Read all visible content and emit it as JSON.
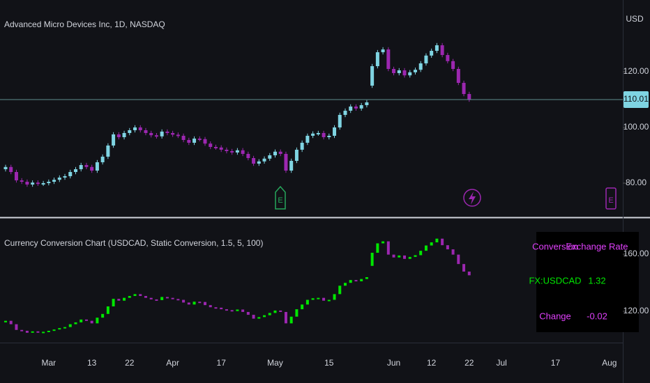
{
  "chart_data": [
    {
      "type": "candlestick",
      "title": "Advanced Micro Devices Inc, 1D, NASDAQ",
      "currency": "USD",
      "categories": [
        null,
        null,
        null,
        null,
        null,
        null,
        null,
        null,
        "Mar",
        null,
        null,
        null,
        null,
        null,
        null,
        null,
        "13",
        null,
        null,
        null,
        null,
        null,
        null,
        "22",
        null,
        null,
        null,
        null,
        null,
        null,
        null,
        "Apr",
        null,
        null,
        null,
        null,
        null,
        null,
        null,
        null,
        "17",
        null,
        null,
        null,
        null,
        null,
        null,
        null,
        null,
        null,
        "May",
        null,
        null,
        null,
        null,
        null,
        null,
        null,
        null,
        null,
        "15",
        null,
        null,
        null,
        null,
        null,
        null,
        null,
        null,
        null,
        null,
        null,
        "Jun",
        null,
        null,
        null,
        null,
        null,
        null,
        "12",
        null,
        null,
        null,
        null,
        null,
        null,
        "22",
        null,
        null,
        null,
        null,
        null,
        "Jul",
        null,
        null,
        null,
        null,
        null,
        null,
        null,
        null,
        null,
        "17",
        null,
        null,
        null,
        null,
        null,
        null,
        null,
        null,
        null,
        "Aug"
      ],
      "open": [
        85,
        85.8,
        84,
        81,
        80.5,
        79.5,
        80.2,
        79.8,
        80,
        80.5,
        81.2,
        82,
        82.5,
        84,
        85,
        86.5,
        85.8,
        84.5,
        87.5,
        89.5,
        93.5,
        97.5,
        96.5,
        98,
        99,
        100,
        99,
        98,
        97.2,
        96.8,
        98.5,
        98,
        97.4,
        97,
        95.5,
        94.5,
        96,
        95.8,
        94.2,
        93,
        92.8,
        92,
        91.5,
        91,
        91.8,
        90.5,
        89,
        87,
        87.8,
        88.8,
        90,
        91.3,
        90.5,
        84.5,
        88,
        92,
        94.5,
        97,
        97.8,
        98,
        96.5,
        97,
        100,
        104.5,
        106,
        107.5,
        106.8,
        108,
        115,
        122,
        127,
        128,
        121,
        119.5,
        120.5,
        118.7,
        119.8,
        120.7,
        123,
        125.8,
        127.5,
        129.5,
        126,
        123.8,
        121,
        116,
        112,
        null,
        null,
        null,
        null,
        null,
        null,
        null,
        null,
        null,
        null,
        null,
        null,
        null,
        null,
        null,
        null,
        null,
        null,
        null,
        null,
        null,
        null,
        null,
        null,
        null,
        null
      ],
      "high": [
        86.6,
        86.6,
        84.8,
        81.8,
        81.3,
        81,
        81,
        80.8,
        81.3,
        82,
        82.8,
        83.3,
        84.8,
        85.8,
        87.3,
        87.3,
        86.6,
        88.3,
        90.3,
        94.3,
        98.3,
        98.3,
        98.8,
        99.8,
        100.8,
        100.8,
        99.8,
        98.8,
        98,
        99.3,
        99.3,
        98.8,
        98.2,
        97.8,
        96.3,
        96.8,
        96.8,
        96.6,
        95,
        93.8,
        93.6,
        92.8,
        92.3,
        92.6,
        92.6,
        91.3,
        89.8,
        88.6,
        89.6,
        90.8,
        92.1,
        92.1,
        91.3,
        88.8,
        92.8,
        95.3,
        97.8,
        98.6,
        98.8,
        98.8,
        97.8,
        100.8,
        105.3,
        106.8,
        108.3,
        108.3,
        108.8,
        109.8,
        122.8,
        127.8,
        128.8,
        128.8,
        121.8,
        121.3,
        121.3,
        120.6,
        121.5,
        123.8,
        126.6,
        128.3,
        130.3,
        130.3,
        126.8,
        124.6,
        121.8,
        116.8,
        112.8,
        null,
        null,
        null,
        null,
        null,
        null,
        null,
        null,
        null,
        null,
        null,
        null,
        null,
        null,
        null,
        null,
        null,
        null,
        null,
        null,
        null,
        null,
        null,
        null,
        null,
        null
      ],
      "low": [
        84.2,
        83.2,
        80.2,
        79.7,
        78.7,
        78.7,
        79,
        79,
        79.2,
        79.7,
        80.4,
        81.2,
        81.7,
        83.2,
        84.2,
        85,
        83.7,
        83.7,
        86.7,
        88.7,
        92.7,
        95.7,
        95.7,
        97.2,
        98.2,
        98.2,
        97.2,
        96.4,
        96,
        96,
        97.2,
        96.6,
        96.2,
        94.7,
        93.7,
        93.7,
        95,
        93.4,
        92.2,
        92,
        91.2,
        90.7,
        90.2,
        90.2,
        89.7,
        88.2,
        86.2,
        86.2,
        87,
        88,
        89.2,
        89.7,
        83.7,
        83.7,
        87.2,
        91.2,
        93.7,
        96.2,
        97,
        95.7,
        95.7,
        96.2,
        99.2,
        103.7,
        105.2,
        106,
        106,
        107.2,
        114.2,
        121.2,
        126.2,
        120.2,
        118.7,
        118.7,
        117.9,
        117.9,
        119,
        119.9,
        122.2,
        125,
        126.7,
        125.2,
        123,
        120.2,
        115.2,
        111.2,
        109.2,
        null,
        null,
        null,
        null,
        null,
        null,
        null,
        null,
        null,
        null,
        null,
        null,
        null,
        null,
        null,
        null,
        null,
        null,
        null,
        null,
        null,
        null,
        null,
        null,
        null,
        null
      ],
      "close": [
        85.8,
        84,
        81,
        80.5,
        79.5,
        80.2,
        79.8,
        80,
        80.5,
        81.2,
        82,
        82.5,
        84,
        85,
        86.5,
        85.8,
        84.5,
        87.5,
        89.5,
        93.5,
        97.5,
        96.5,
        98,
        99,
        100,
        99,
        98,
        97.2,
        96.8,
        98.5,
        98,
        97.4,
        97,
        95.5,
        94.5,
        96,
        95.8,
        94.2,
        93,
        92.8,
        92,
        91.5,
        91,
        91.8,
        90.5,
        89,
        87,
        87.8,
        88.8,
        90,
        91.3,
        90.5,
        84.5,
        88,
        92,
        94.5,
        97,
        97.8,
        98,
        96.5,
        97,
        100,
        104.5,
        106,
        107.5,
        106.8,
        108,
        109,
        122,
        127,
        128,
        121,
        119.5,
        120.5,
        118.7,
        119.8,
        120.7,
        123,
        125.8,
        127.5,
        129.5,
        126,
        123.8,
        121,
        116,
        112,
        110.01,
        null,
        null,
        null,
        null,
        null,
        null,
        null,
        null,
        null,
        null,
        null,
        null,
        null,
        null,
        null,
        null,
        null,
        null,
        null,
        null,
        null,
        null,
        null,
        null,
        null,
        null
      ],
      "up_color": "#7fd4e2",
      "down_color": "#9c27b0",
      "ylim": [
        68.25,
        145.75
      ],
      "yticks": [
        {
          "value": 80,
          "label": "80.00"
        },
        {
          "value": 100,
          "label": "100.00"
        },
        {
          "value": 120,
          "label": "120.00"
        }
      ],
      "last_price": 110.01,
      "events": [
        "E",
        "E"
      ]
    },
    {
      "type": "candlestick",
      "title": "Currency Conversion Chart (USDCAD, Static Conversion, 1.5, 5, 100)",
      "open": [
        112.2,
        113.3,
        110.9,
        106.9,
        106.3,
        104.9,
        105.9,
        105.3,
        105.6,
        106.3,
        107.2,
        108.2,
        108.9,
        110.9,
        112.2,
        114.2,
        113.3,
        111.5,
        115.5,
        118.1,
        123.4,
        128.7,
        127.4,
        129.4,
        130.7,
        132,
        130.7,
        129.4,
        128.3,
        127.8,
        130,
        129.4,
        128.6,
        128,
        126.1,
        124.7,
        126.7,
        126.5,
        124.3,
        122.8,
        122.5,
        121.4,
        120.8,
        120.1,
        121.2,
        119.5,
        117.5,
        114.8,
        115.9,
        117.2,
        118.8,
        120.5,
        119.5,
        111.5,
        116.2,
        121.4,
        124.7,
        128,
        129.1,
        129.4,
        127.4,
        128,
        132,
        137.9,
        139.9,
        141.9,
        141,
        142.6,
        151.8,
        161,
        167.6,
        169,
        159.7,
        157.7,
        159.1,
        156.7,
        158.1,
        159.3,
        162.4,
        166.1,
        168.3,
        170.9,
        166.3,
        163.4,
        159.7,
        153.1,
        147.8,
        null,
        null,
        null,
        null,
        null,
        null,
        null,
        null,
        null,
        null,
        null,
        null,
        null,
        null,
        null,
        null,
        null,
        null,
        null,
        null,
        null,
        null,
        null,
        null,
        null,
        null
      ],
      "close": [
        113.3,
        110.9,
        106.9,
        106.3,
        104.9,
        105.9,
        105.3,
        105.6,
        106.3,
        107.2,
        108.2,
        108.9,
        110.9,
        112.2,
        114.2,
        113.3,
        111.5,
        115.5,
        118.1,
        123.4,
        128.7,
        127.4,
        129.4,
        130.7,
        132,
        130.7,
        129.4,
        128.3,
        127.8,
        130,
        129.4,
        128.6,
        128,
        126.1,
        124.7,
        126.7,
        126.5,
        124.3,
        122.8,
        122.5,
        121.4,
        120.8,
        120.1,
        121.2,
        119.5,
        117.5,
        114.8,
        115.9,
        117.2,
        118.8,
        120.5,
        119.5,
        111.5,
        116.2,
        121.4,
        124.7,
        128,
        129.1,
        129.4,
        127.4,
        128,
        132,
        137.9,
        139.9,
        141.9,
        141,
        142.6,
        143.9,
        161,
        167.6,
        169,
        159.7,
        157.7,
        159.1,
        156.7,
        158.1,
        159.3,
        162.4,
        166.1,
        168.3,
        170.9,
        166.3,
        163.4,
        159.7,
        153.1,
        147.8,
        145.2,
        null,
        null,
        null,
        null,
        null,
        null,
        null,
        null,
        null,
        null,
        null,
        null,
        null,
        null,
        null,
        null,
        null,
        null,
        null,
        null,
        null,
        null,
        null,
        null,
        null,
        null
      ],
      "up_color": "#00e600",
      "down_color": "#9c27b0",
      "ylim": [
        98,
        185.4
      ],
      "yticks": [
        {
          "value": 120,
          "label": "120.00"
        },
        {
          "value": 160,
          "label": "160.00"
        }
      ],
      "table": {
        "rows": [
          [
            "Conversion",
            "Exchange Rate"
          ],
          [
            "FX:USDCAD",
            "1.32"
          ],
          [
            "Change",
            "-0.02"
          ]
        ]
      }
    }
  ]
}
